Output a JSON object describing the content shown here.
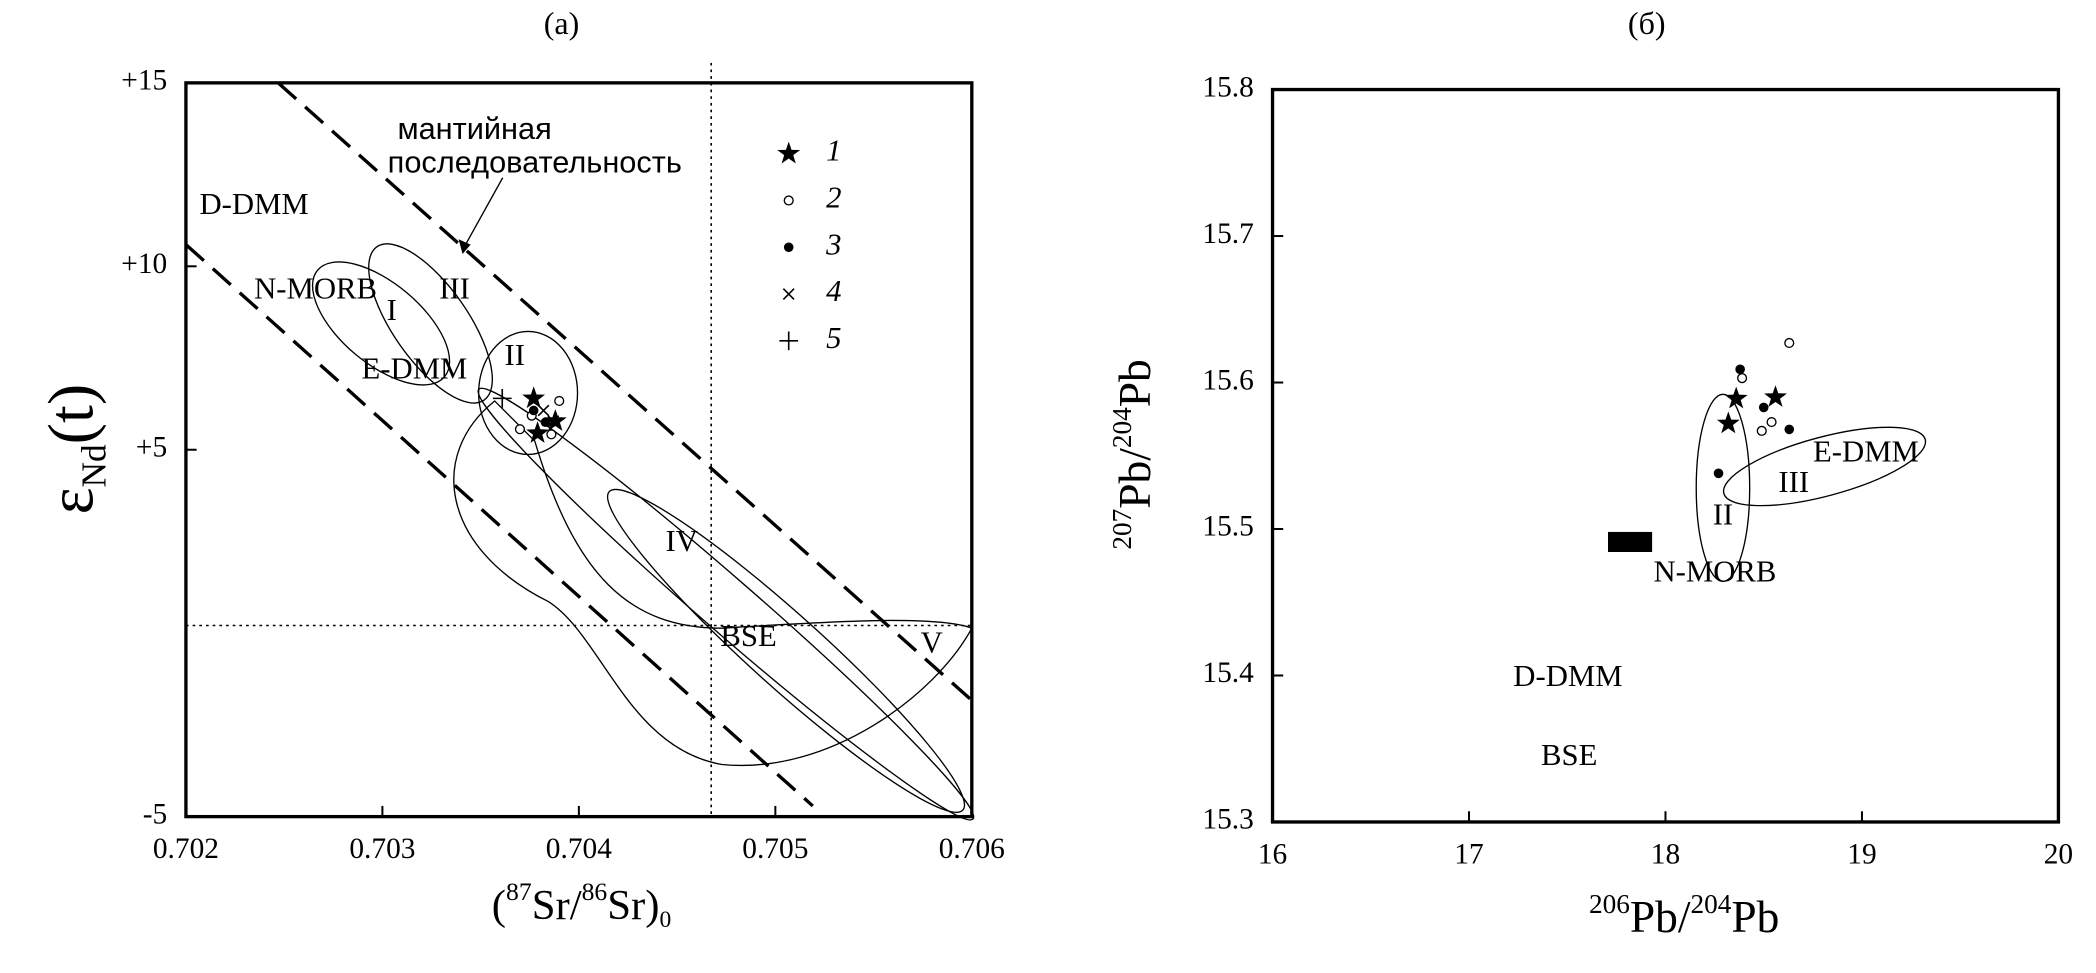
{
  "chart_data": [
    {
      "type": "scatter",
      "title": "(а)",
      "x_label_parts": [
        "(",
        "87",
        "Sr/",
        "86",
        "Sr)",
        "0"
      ],
      "y_label_parts": [
        "ε",
        "Nd",
        "(t)"
      ],
      "xlim": [
        0.702,
        0.706
      ],
      "xticks": [
        0.702,
        0.703,
        0.704,
        0.705,
        0.706
      ],
      "ylim": [
        -5,
        15
      ],
      "yticks": [
        {
          "value": 15,
          "label": "+15"
        },
        {
          "value": 10,
          "label": "+10"
        },
        {
          "value": 5,
          "label": "+5"
        },
        -5
      ],
      "legend": "upper right",
      "series": [
        {
          "name": "1",
          "marker": "star",
          "x": [
            0.70377,
            0.70388,
            0.70379
          ],
          "values": [
            6.4,
            5.78,
            5.45
          ]
        },
        {
          "name": "2",
          "marker": "open-circle",
          "x": [
            0.7037,
            0.70376,
            0.7039,
            0.70386
          ],
          "values": [
            5.56,
            5.93,
            6.33,
            5.42
          ]
        },
        {
          "name": "3",
          "marker": "filled-circle",
          "x": [
            0.70377,
            0.70383
          ],
          "values": [
            6.07,
            5.75
          ]
        },
        {
          "name": "4",
          "marker": "x",
          "x": [
            0.70382,
            0.70387
          ],
          "values": [
            6.07,
            5.78
          ]
        },
        {
          "name": "5",
          "marker": "plus",
          "x": [
            0.70361
          ],
          "values": [
            6.4
          ]
        }
      ],
      "annotations": [
        "D-DMM",
        "N-MORB",
        "I",
        "III",
        "E-DMM",
        "II",
        "IV",
        "BSE",
        "V",
        "мантийная",
        "последовательность"
      ]
    },
    {
      "type": "scatter",
      "title": "(б)",
      "x_label_parts": [
        "206",
        "Pb/",
        "204",
        "Pb"
      ],
      "y_label_parts": [
        "207",
        "Pb/",
        "204",
        "Pb"
      ],
      "xlim": [
        16,
        20
      ],
      "xticks": [
        16,
        17,
        18,
        19,
        20
      ],
      "ylim": [
        15.3,
        15.8
      ],
      "yticks": [
        15.3,
        15.4,
        15.5,
        15.6,
        15.7,
        15.8
      ],
      "series": [
        {
          "marker": "star",
          "x": [
            18.36,
            18.56,
            18.32
          ],
          "values": [
            15.589,
            15.59,
            15.572
          ]
        },
        {
          "marker": "open-circle",
          "x": [
            18.39,
            18.63,
            18.49,
            18.54
          ],
          "values": [
            15.603,
            15.627,
            15.567,
            15.573
          ]
        },
        {
          "marker": "filled-circle",
          "x": [
            18.38,
            18.5,
            18.63,
            18.27
          ],
          "values": [
            15.609,
            15.583,
            15.568,
            15.538
          ]
        }
      ],
      "annotations": [
        "E-DMM",
        "III",
        "II",
        "N-MORB",
        "D-DMM",
        "BSE"
      ]
    }
  ]
}
